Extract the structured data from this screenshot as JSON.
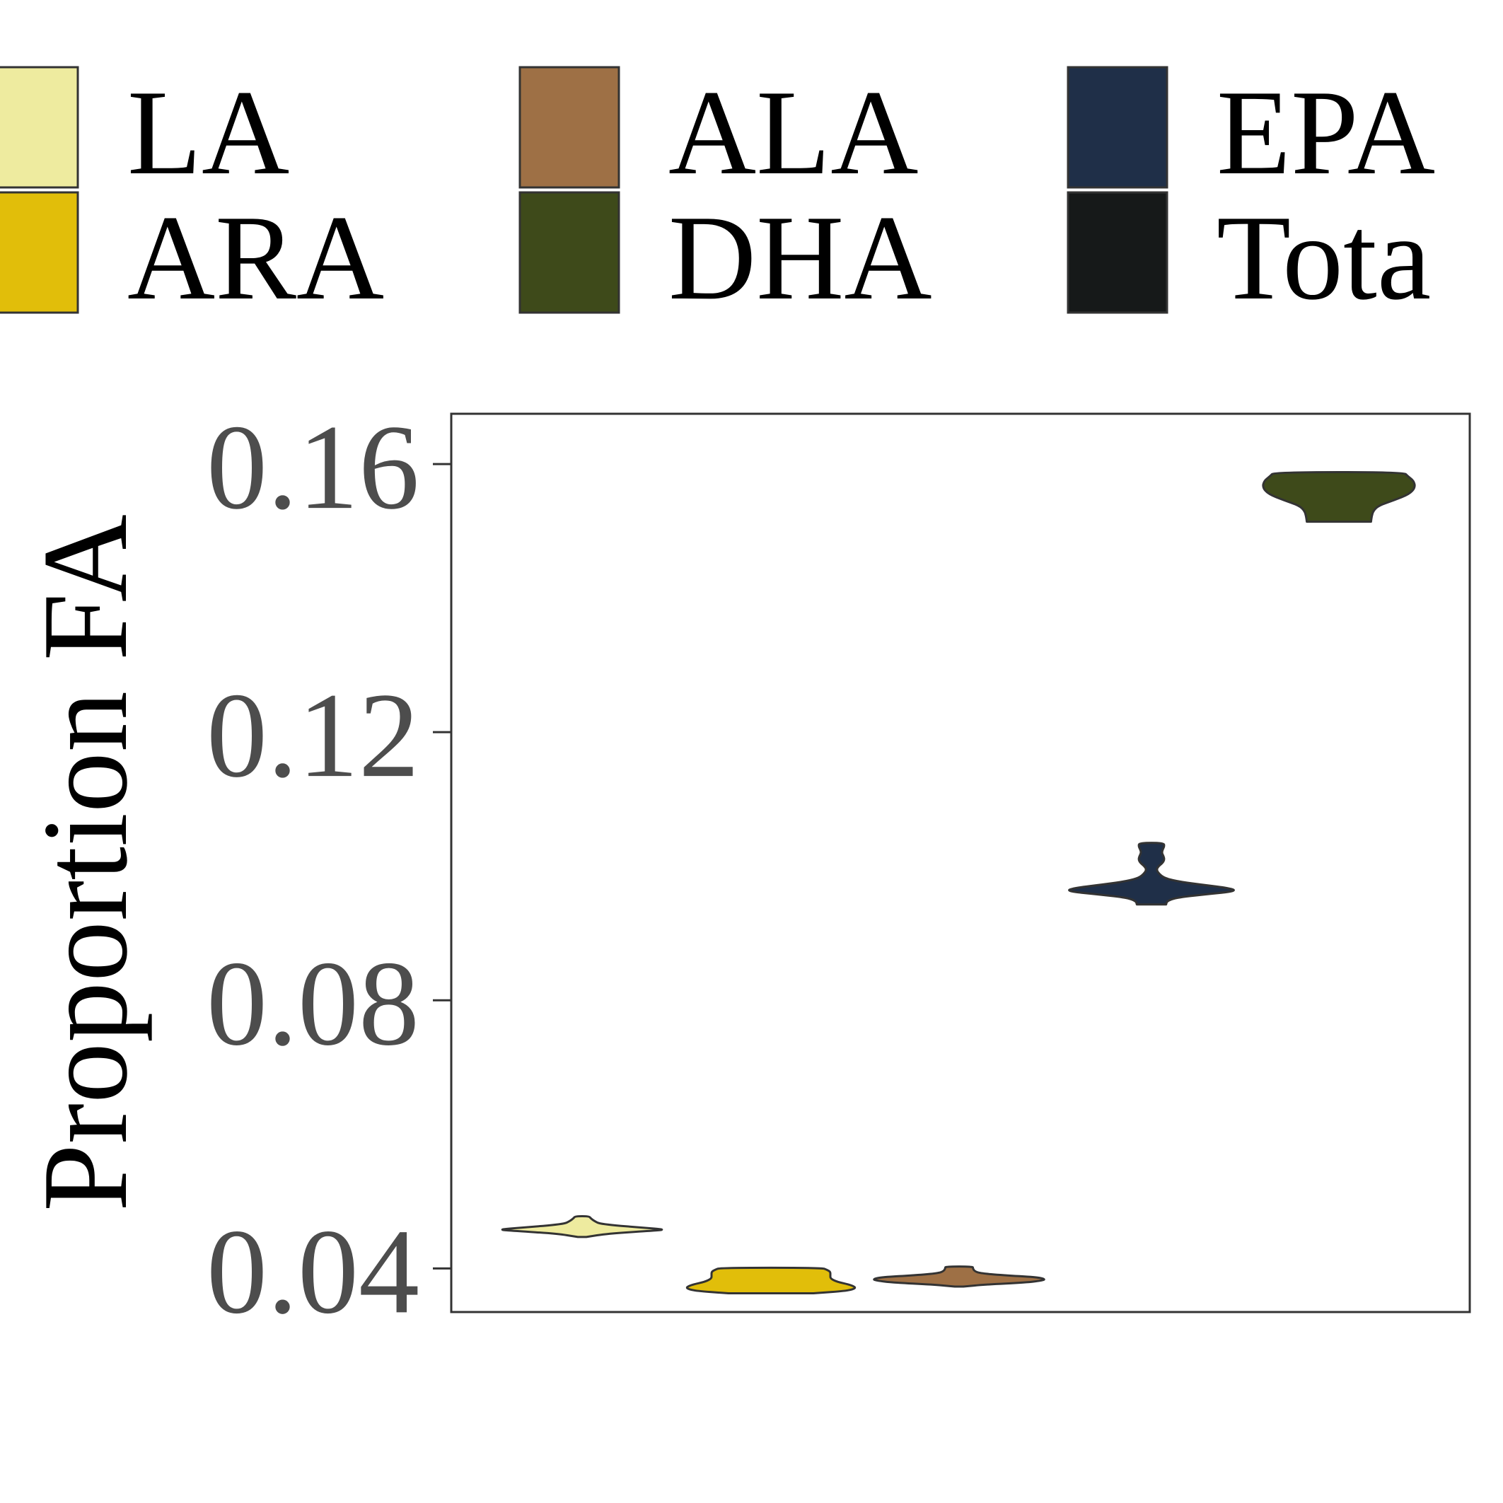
{
  "chart_data": {
    "type": "violin",
    "ylabel": "Proportion FA",
    "xlabel": "",
    "ylim": [
      0.0335,
      0.1675
    ],
    "yticks": [
      0.04,
      0.08,
      0.12,
      0.16
    ],
    "ytick_labels": [
      "0.04",
      "0.08",
      "0.12",
      "0.16"
    ],
    "grid": false,
    "legend": {
      "placement": "top",
      "entries": [
        {
          "label": "LA",
          "color": "#EEEB9F"
        },
        {
          "label": "ALA",
          "color": "#9E7045"
        },
        {
          "label": "EPA",
          "color": "#1F2F48"
        },
        {
          "label": "ARA",
          "color": "#E1BE0A"
        },
        {
          "label": "DHA",
          "color": "#3E4A1A"
        },
        {
          "label": "Tota",
          "color": "#161919"
        }
      ]
    },
    "series": [
      {
        "name": "LA",
        "color": "#EEEB9F",
        "min": 0.0447,
        "max": 0.0478,
        "mode": 0.0458,
        "profile": [
          [
            0.0447,
            0.05
          ],
          [
            0.0452,
            0.3
          ],
          [
            0.0456,
            0.8
          ],
          [
            0.0458,
            1.0
          ],
          [
            0.0461,
            0.7
          ],
          [
            0.0466,
            0.22
          ],
          [
            0.0471,
            0.14
          ],
          [
            0.0475,
            0.1
          ],
          [
            0.0478,
            0.08
          ]
        ]
      },
      {
        "name": "ARA",
        "color": "#E1BE0A",
        "min": 0.0363,
        "max": 0.0401,
        "mode": 0.0372,
        "profile": [
          [
            0.0363,
            0.5
          ],
          [
            0.0366,
            0.85
          ],
          [
            0.0369,
            0.97
          ],
          [
            0.0372,
            1.0
          ],
          [
            0.0376,
            0.92
          ],
          [
            0.038,
            0.78
          ],
          [
            0.0385,
            0.7
          ],
          [
            0.039,
            0.7
          ],
          [
            0.0395,
            0.7
          ],
          [
            0.0398,
            0.66
          ],
          [
            0.0401,
            0.6
          ]
        ]
      },
      {
        "name": "ALA",
        "color": "#9E7045",
        "min": 0.0373,
        "max": 0.0403,
        "mode": 0.0384,
        "profile": [
          [
            0.0373,
            0.05
          ],
          [
            0.0376,
            0.3
          ],
          [
            0.0379,
            0.78
          ],
          [
            0.0382,
            0.96
          ],
          [
            0.0384,
            1.0
          ],
          [
            0.0387,
            0.9
          ],
          [
            0.039,
            0.5
          ],
          [
            0.0393,
            0.24
          ],
          [
            0.0396,
            0.18
          ],
          [
            0.04,
            0.16
          ],
          [
            0.0403,
            0.16
          ]
        ]
      },
      {
        "name": "EPA",
        "color": "#1F2F48",
        "min": 0.0943,
        "max": 0.1035,
        "mode": 0.0963,
        "profile": [
          [
            0.0943,
            0.17
          ],
          [
            0.0948,
            0.18
          ],
          [
            0.0953,
            0.28
          ],
          [
            0.0958,
            0.62
          ],
          [
            0.0963,
            1.0
          ],
          [
            0.0968,
            0.88
          ],
          [
            0.0973,
            0.55
          ],
          [
            0.0978,
            0.28
          ],
          [
            0.0983,
            0.14
          ],
          [
            0.099,
            0.08
          ],
          [
            0.0995,
            0.06
          ],
          [
            0.1,
            0.08
          ],
          [
            0.1005,
            0.13
          ],
          [
            0.101,
            0.15
          ],
          [
            0.1015,
            0.14
          ],
          [
            0.102,
            0.12
          ],
          [
            0.1025,
            0.13
          ],
          [
            0.103,
            0.15
          ],
          [
            0.1035,
            0.14
          ]
        ]
      },
      {
        "name": "DHA",
        "color": "#3E4A1A",
        "min": 0.1514,
        "max": 0.1588,
        "mode": 0.1565,
        "profile": [
          [
            0.1514,
            0.42
          ],
          [
            0.1522,
            0.43
          ],
          [
            0.153,
            0.45
          ],
          [
            0.1538,
            0.52
          ],
          [
            0.1546,
            0.72
          ],
          [
            0.1555,
            0.92
          ],
          [
            0.1565,
            1.0
          ],
          [
            0.1575,
            0.98
          ],
          [
            0.1582,
            0.9
          ],
          [
            0.1588,
            0.85
          ]
        ]
      }
    ]
  }
}
